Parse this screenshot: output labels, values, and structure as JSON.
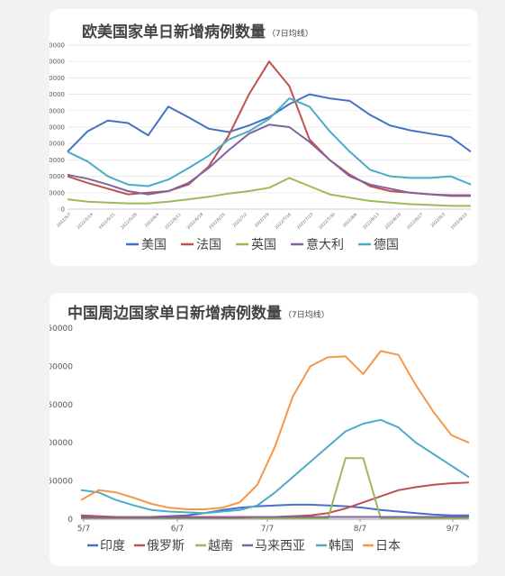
{
  "chart_data": [
    {
      "type": "line",
      "title": "欧美国家单日新增病例数量",
      "subtitle": "（7日均线）",
      "ylim": [
        0,
        200000
      ],
      "yticks": [
        "0",
        "20000",
        "40000",
        "60000",
        "80000",
        "100000",
        "120000",
        "140000",
        "160000",
        "180000",
        "200000"
      ],
      "xticks": [
        "2022/5/7",
        "2022/5/14",
        "2022/5/21",
        "2022/5/28",
        "2022/6/4",
        "2022/6/11",
        "2022/6/18",
        "2022/6/25",
        "2022/7/2",
        "2022/7/9",
        "2022/7/16",
        "2022/7/23",
        "2022/7/30",
        "2022/8/6",
        "2022/8/13",
        "2022/8/20",
        "2022/8/27",
        "2022/9/3",
        "2022/9/10"
      ],
      "grid": true,
      "legend_position": "bottom",
      "series": [
        {
          "name": "美国",
          "color": "#4472c4",
          "values": [
            70000,
            95000,
            108000,
            105000,
            90000,
            125000,
            112000,
            98000,
            94000,
            102000,
            112000,
            128000,
            140000,
            135000,
            132000,
            115000,
            102000,
            96000,
            92000,
            88000,
            70000
          ]
        },
        {
          "name": "法国",
          "color": "#c0504d",
          "values": [
            40000,
            32000,
            25000,
            18000,
            20000,
            22000,
            30000,
            52000,
            90000,
            140000,
            180000,
            150000,
            85000,
            60000,
            42000,
            28000,
            22000,
            20000,
            18000,
            16000,
            16000
          ]
        },
        {
          "name": "英国",
          "color": "#9bbb59",
          "values": [
            12000,
            9000,
            8000,
            7000,
            7000,
            9000,
            12000,
            15000,
            19000,
            22000,
            26000,
            38000,
            28000,
            18000,
            14000,
            10000,
            8000,
            6000,
            5000,
            4000,
            4000
          ]
        },
        {
          "name": "意大利",
          "color": "#8064a2",
          "values": [
            42000,
            37000,
            30000,
            22000,
            18000,
            22000,
            32000,
            50000,
            72000,
            92000,
            103000,
            100000,
            82000,
            60000,
            40000,
            30000,
            25000,
            20000,
            18000,
            17000,
            17000
          ]
        },
        {
          "name": "德国",
          "color": "#4bacc6",
          "values": [
            70000,
            58000,
            40000,
            30000,
            28000,
            36000,
            50000,
            65000,
            85000,
            95000,
            110000,
            135000,
            125000,
            95000,
            70000,
            48000,
            40000,
            38000,
            38000,
            40000,
            30000
          ]
        }
      ]
    },
    {
      "type": "line",
      "title": "中国周边国家单日新增病例数量",
      "subtitle": "（7日均线）",
      "ylim": [
        0,
        250000
      ],
      "yticks": [
        "0",
        "50000",
        "100000",
        "150000",
        "200000",
        "250000"
      ],
      "xticks": [
        "5/7",
        "6/7",
        "7/7",
        "8/7",
        "9/7"
      ],
      "grid": false,
      "legend_position": "bottom",
      "series": [
        {
          "name": "印度",
          "color": "#4472c4",
          "values": [
            3000,
            3000,
            3000,
            3000,
            3000,
            4000,
            5000,
            8000,
            12000,
            15000,
            17000,
            18000,
            19000,
            19000,
            18000,
            17000,
            15000,
            12000,
            10000,
            8000,
            6000,
            5000,
            5000
          ]
        },
        {
          "name": "俄罗斯",
          "color": "#c0504d",
          "values": [
            5000,
            4000,
            3000,
            3000,
            3000,
            3000,
            3000,
            3000,
            3000,
            3000,
            3000,
            3000,
            4000,
            5000,
            8000,
            14000,
            22000,
            30000,
            38000,
            42000,
            45000,
            47000,
            48000
          ]
        },
        {
          "name": "越南",
          "color": "#9bbb59",
          "values": [
            1000,
            1000,
            1000,
            1000,
            1000,
            1000,
            1000,
            1000,
            1000,
            1000,
            1000,
            1000,
            1000,
            1000,
            1000,
            80000,
            80000,
            1000,
            1000,
            1000,
            1000,
            1000,
            1000
          ]
        },
        {
          "name": "马来西亚",
          "color": "#8064a2",
          "values": [
            2000,
            2000,
            2000,
            2000,
            2000,
            2000,
            2000,
            2000,
            2000,
            2000,
            3000,
            3000,
            3000,
            3000,
            3000,
            3000,
            3000,
            3000,
            3000,
            3000,
            3000,
            3000,
            3000
          ]
        },
        {
          "name": "韩国",
          "color": "#4bacc6",
          "values": [
            38000,
            35000,
            25000,
            18000,
            12000,
            10000,
            9000,
            8000,
            10000,
            12000,
            18000,
            35000,
            55000,
            75000,
            95000,
            115000,
            125000,
            130000,
            120000,
            100000,
            85000,
            70000,
            55000
          ]
        },
        {
          "name": "日本",
          "color": "#f79646",
          "values": [
            25000,
            38000,
            35000,
            28000,
            20000,
            15000,
            13000,
            13000,
            15000,
            22000,
            45000,
            95000,
            160000,
            200000,
            212000,
            213000,
            190000,
            220000,
            215000,
            175000,
            140000,
            110000,
            100000
          ]
        }
      ]
    }
  ]
}
